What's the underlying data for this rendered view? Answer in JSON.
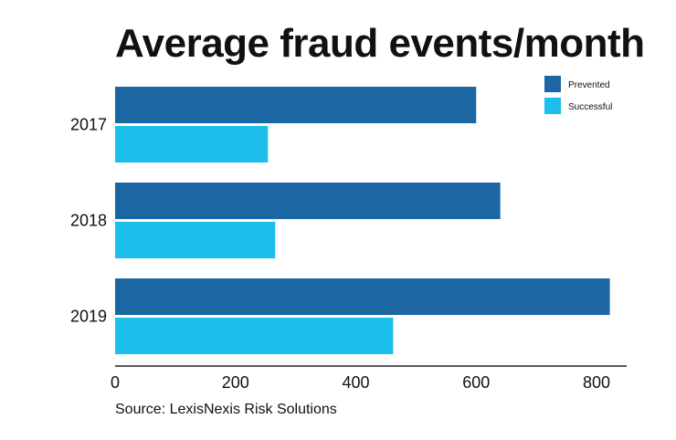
{
  "chart_data": {
    "type": "bar",
    "orientation": "horizontal",
    "title": "Average fraud events/month",
    "categories": [
      "2017",
      "2018",
      "2019"
    ],
    "series": [
      {
        "name": "Prevented",
        "values": [
          600,
          640,
          822
        ],
        "color": "#1b66a3"
      },
      {
        "name": "Successful",
        "values": [
          254,
          266,
          462
        ],
        "color": "#1cbfeb"
      }
    ],
    "xticks": [
      "0",
      "200",
      "400",
      "600",
      "800"
    ],
    "xlim": [
      0,
      850
    ],
    "xlabel": "",
    "ylabel": "",
    "legend_position": "top-right",
    "grid": false
  },
  "source": "Source: LexisNexis Risk Solutions"
}
